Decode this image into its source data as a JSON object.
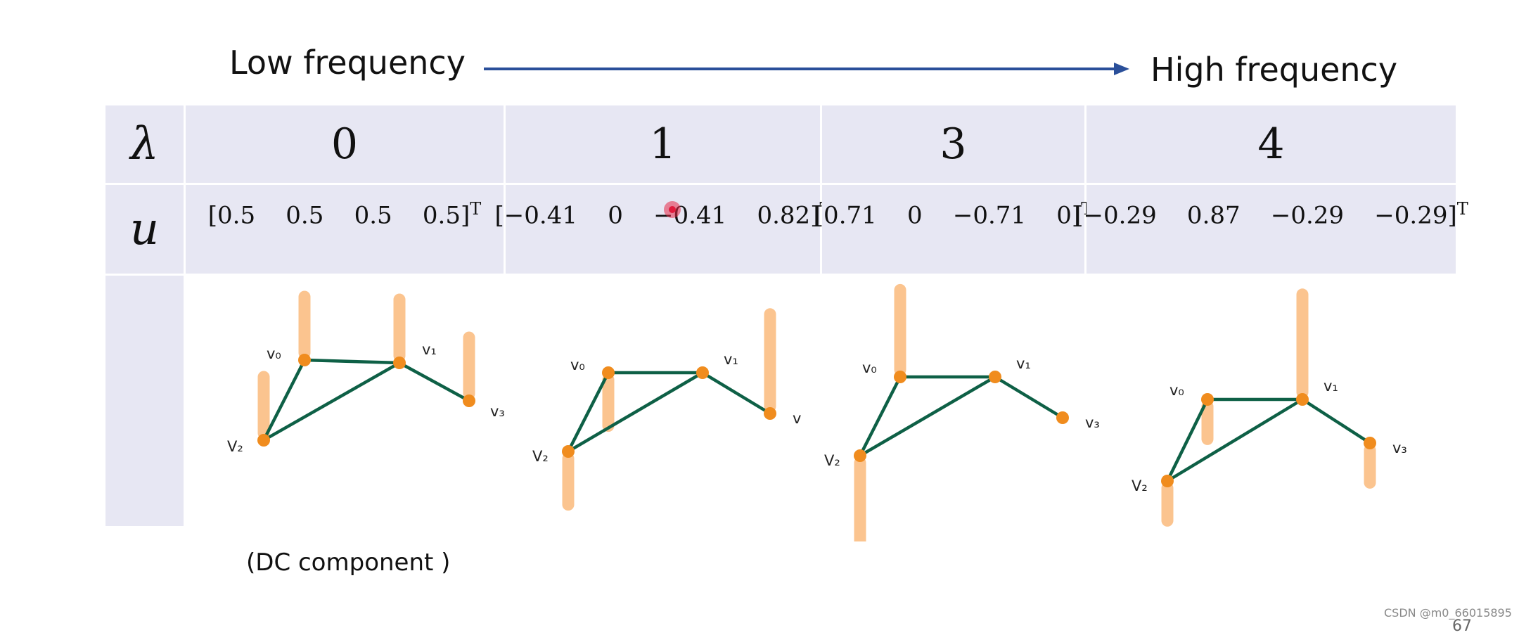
{
  "header": {
    "low_label": "Low frequency",
    "high_label": "High frequency"
  },
  "table": {
    "lambda_symbol": "λ",
    "u_symbol": "u",
    "columns": [
      {
        "lambda": "0",
        "vector": "[0.5    0.5    0.5    0.5]",
        "transpose": "T"
      },
      {
        "lambda": "1",
        "vector": "[−0.41    0    −0.41    0.82]",
        "transpose": "T"
      },
      {
        "lambda": "3",
        "vector": "[0.71    0    −0.71    0]",
        "transpose": "T"
      },
      {
        "lambda": "4",
        "vector": "[−0.29    0.87    −0.29    −0.29]",
        "transpose": "T"
      }
    ]
  },
  "graphs": [
    {
      "signal": [
        0.5,
        0.5,
        0.5,
        0.5
      ],
      "labels": [
        "v₀",
        "v₁",
        "V₂",
        "v₃"
      ]
    },
    {
      "signal": [
        -0.41,
        0,
        -0.41,
        0.82
      ],
      "labels": [
        "v₀",
        "v₁",
        "V₂",
        "v"
      ]
    },
    {
      "signal": [
        0.71,
        0,
        -0.71,
        0
      ],
      "labels": [
        "v₀",
        "v₁",
        "V₂",
        "v₃"
      ]
    },
    {
      "signal": [
        -0.29,
        0.87,
        -0.29,
        -0.29
      ],
      "labels": [
        "v₀",
        "v₁",
        "V₂",
        "v₃"
      ]
    }
  ],
  "colors": {
    "edge": "#0e6046",
    "node": "#f08c1e",
    "bar": "#fbc48f",
    "arrow": "#2a4f9a",
    "header_bg": "#e7e7f3"
  },
  "footer": {
    "dc_label": "(DC component )",
    "watermark": "CSDN @m0_66015895",
    "page_number": "67"
  }
}
